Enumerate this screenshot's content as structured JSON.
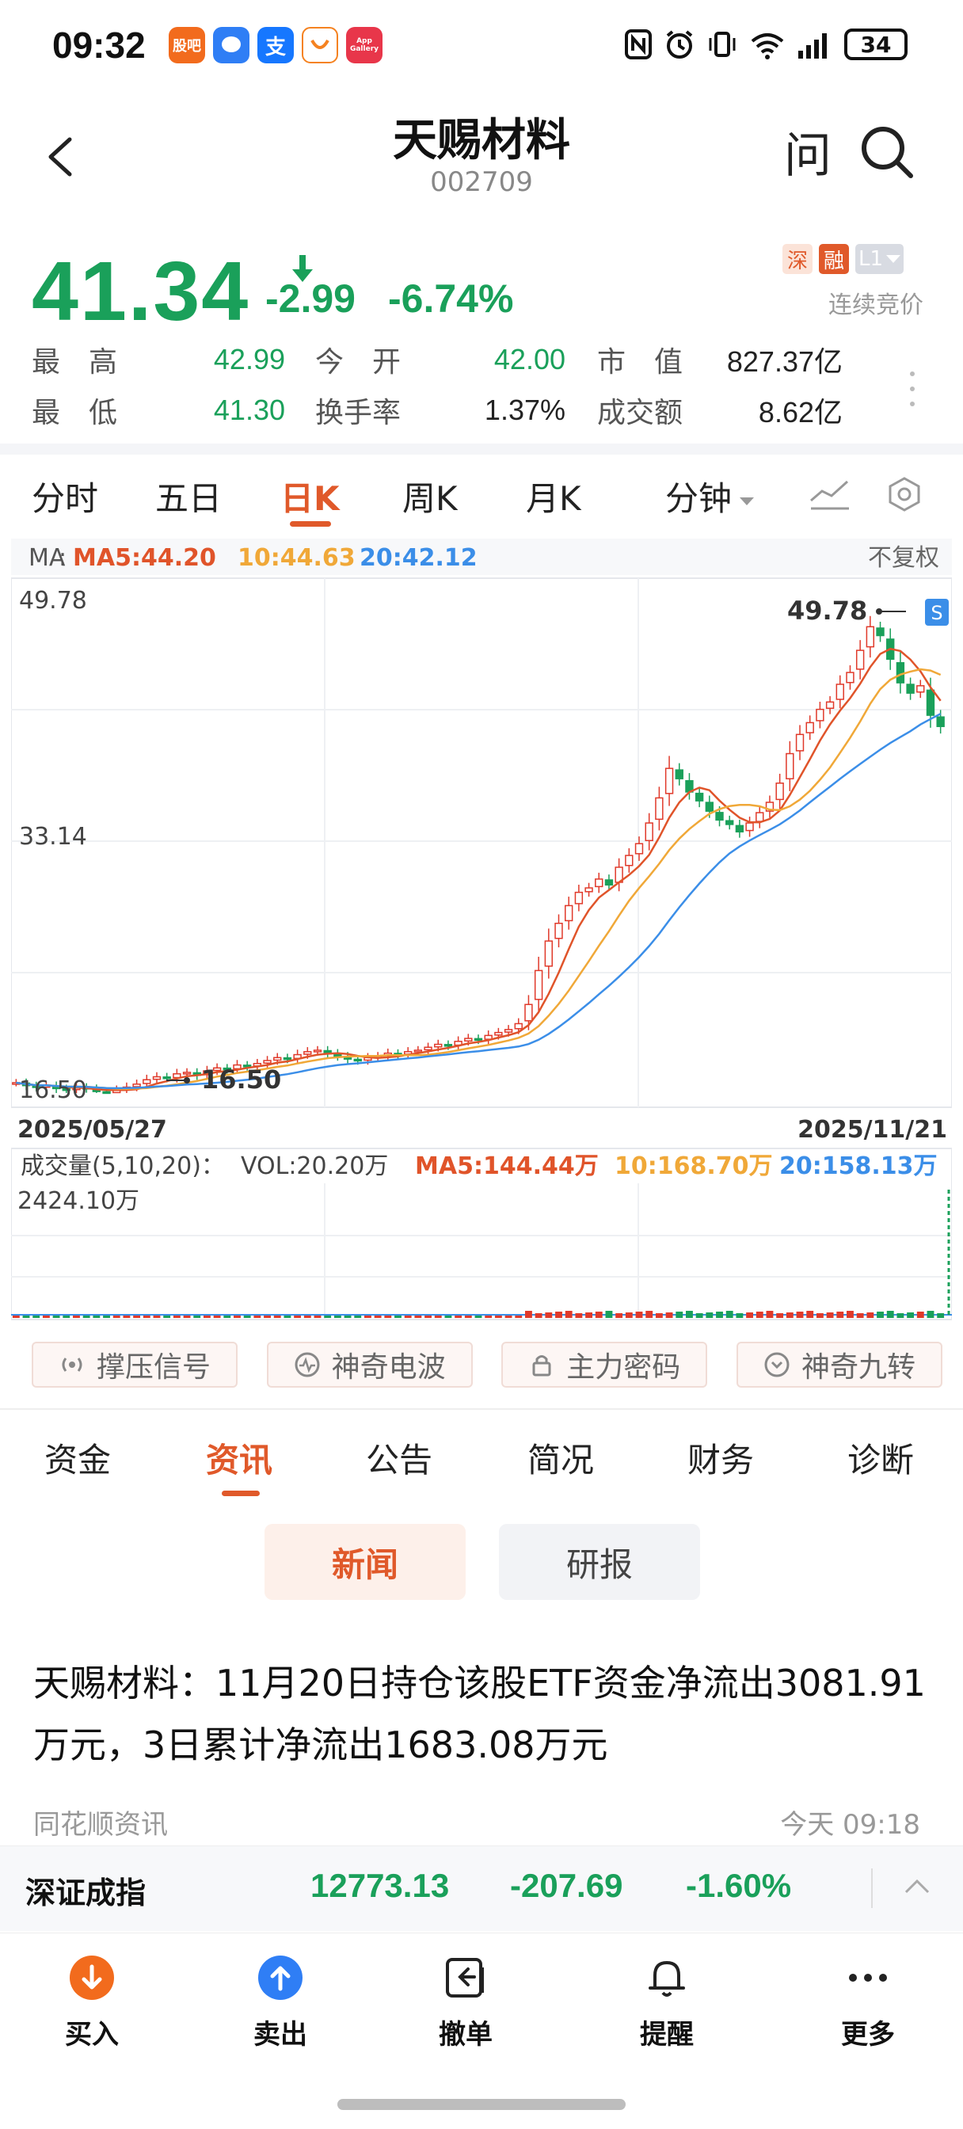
{
  "status_bar": {
    "time": "09:32",
    "app_icons": [
      "股吧",
      "messages-icon",
      "支",
      "taxi-icon",
      "App Gallery"
    ],
    "battery": "34"
  },
  "header": {
    "stock_name": "天赐材料",
    "stock_code": "002709",
    "ask_label": "问"
  },
  "quote": {
    "price": "41.34",
    "change": "-2.99",
    "change_pct": "-6.74%",
    "badges": [
      "深",
      "融",
      "L1"
    ],
    "auction_status": "连续竞价",
    "stats": [
      {
        "label": "最　高",
        "value": "42.99",
        "color": "green"
      },
      {
        "label": "今　开",
        "value": "42.00",
        "color": "green"
      },
      {
        "label": "市　值",
        "value": "827.37亿",
        "color": "dark"
      },
      {
        "label": "最　低",
        "value": "41.30",
        "color": "green"
      },
      {
        "label": "换手率",
        "value": "1.37%",
        "color": "dark"
      },
      {
        "label": "成交额",
        "value": "8.62亿",
        "color": "dark"
      }
    ]
  },
  "period_tabs": [
    "分时",
    "五日",
    "日K",
    "周K",
    "月K",
    "分钟"
  ],
  "active_period": "日K",
  "chart_data": {
    "type": "candlestick",
    "title": "",
    "ma_legend": {
      "prefix": "MA",
      "ma5": "MA5:44.20",
      "ma10": "10:44.63",
      "ma20": "20:42.12"
    },
    "adjust_label": "不复权",
    "y_ticks": [
      "49.78",
      "33.14",
      "16.50"
    ],
    "ylim": [
      16.5,
      49.78
    ],
    "high_marker": "49.78",
    "low_marker": "16.50",
    "start_date": "2025/05/27",
    "end_date": "2025/11/21",
    "closes": [
      17.2,
      17.0,
      16.9,
      17.0,
      16.8,
      16.7,
      16.9,
      16.8,
      16.6,
      16.5,
      16.7,
      16.9,
      17.1,
      17.4,
      17.6,
      17.5,
      17.8,
      17.9,
      17.7,
      18.0,
      18.2,
      18.1,
      18.4,
      18.3,
      18.5,
      18.7,
      18.9,
      18.8,
      19.1,
      19.3,
      19.4,
      19.2,
      19.0,
      18.8,
      18.7,
      18.9,
      19.0,
      19.2,
      19.1,
      19.3,
      19.4,
      19.6,
      19.8,
      19.7,
      20.0,
      20.2,
      20.1,
      20.4,
      20.6,
      20.8,
      21.2,
      22.5,
      24.8,
      26.8,
      28.0,
      29.2,
      30.1,
      30.4,
      31.0,
      30.6,
      31.8,
      32.6,
      33.4,
      34.8,
      36.5,
      38.5,
      37.8,
      36.9,
      36.3,
      35.6,
      35.0,
      34.7,
      34.2,
      34.8,
      35.5,
      36.2,
      37.5,
      39.5,
      40.8,
      41.6,
      42.5,
      43.0,
      44.2,
      45.0,
      46.5,
      48.1,
      47.5,
      45.9,
      44.3,
      43.6,
      44.1,
      42.1,
      41.34
    ],
    "colors": {
      "ma5": "#e0542a",
      "ma10": "#f0a838",
      "ma20": "#3b8ee8",
      "up": "#e0392a",
      "down": "#1aa05a"
    },
    "volume": {
      "legend_prefix": "成交量(5,10,20)：",
      "vol": "VOL:20.20万",
      "ma5": "MA5:144.44万",
      "ma10": "10:168.70万",
      "ma20": "20:158.13万",
      "max_label": "2424.10万"
    }
  },
  "signals": [
    "撑压信号",
    "神奇电波",
    "主力密码",
    "神奇九转"
  ],
  "info_tabs": [
    "资金",
    "资讯",
    "公告",
    "简况",
    "财务",
    "诊断"
  ],
  "active_info_tab": "资讯",
  "sub_tabs": {
    "news": "新闻",
    "report": "研报"
  },
  "news": {
    "title": "天赐材料：11月20日持仓该股ETF资金净流出3081.91万元，3日累计净流出1683.08万元",
    "source": "同花顺资讯",
    "time": "今天 09:18"
  },
  "index_bar": {
    "name": "深证成指",
    "value": "12773.13",
    "change": "-207.69",
    "change_pct": "-1.60%"
  },
  "actions": [
    "买入",
    "卖出",
    "撤单",
    "提醒",
    "更多"
  ]
}
